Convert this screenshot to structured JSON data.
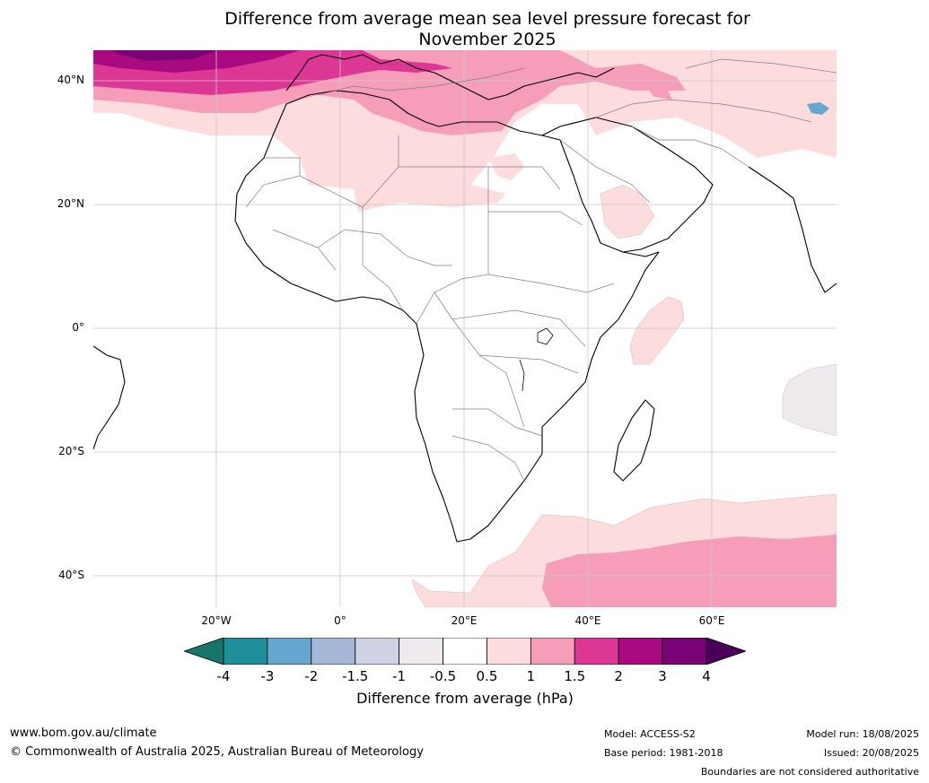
{
  "title_line1": "Difference from average mean sea level pressure forecast for",
  "title_line2": "November 2025",
  "map": {
    "lat_labels": [
      "40°N",
      "20°N",
      "0°",
      "20°S",
      "40°S"
    ],
    "lon_labels": [
      "20°W",
      "0°",
      "20°E",
      "40°E",
      "60°E"
    ],
    "colors": {
      "land_outline": "#000000",
      "borders": "#808080",
      "gridline": "#c8c8c8",
      "pos_0_5_1": "#fcdcdd",
      "pos_1_1_5": "#f69eb9",
      "pos_1_5_2": "#dc3795",
      "pos_2_3": "#aa0a7f",
      "pos_3_4": "#7a0277",
      "neg_0_5_1": "#eeeaee",
      "neg_2_3": "#67a7cf"
    }
  },
  "colorbar": {
    "ticks": [
      "-4",
      "-3",
      "-2",
      "-1.5",
      "-1",
      "-0.5",
      "0.5",
      "1",
      "1.5",
      "2",
      "3",
      "4"
    ],
    "colors": [
      "#16766c",
      "#1e8e99",
      "#67a7cf",
      "#a6b8d8",
      "#cfd1e4",
      "#eeeaee",
      "#ffffff",
      "#fcdcdd",
      "#f69eb9",
      "#dc3795",
      "#aa0a7f",
      "#7a0277",
      "#4b0058"
    ],
    "label": "Difference from average (hPa)"
  },
  "footer": {
    "url": "www.bom.gov.au/climate",
    "copyright": "© Commonwealth of Australia 2025, Australian Bureau of Meteorology",
    "model": "Model: ACCESS-S2",
    "base_period": "Base period: 1981-2018",
    "model_run": "Model run: 18/08/2025",
    "issued": "Issued: 20/08/2025",
    "boundaries": "Boundaries are not considered authoritative"
  }
}
